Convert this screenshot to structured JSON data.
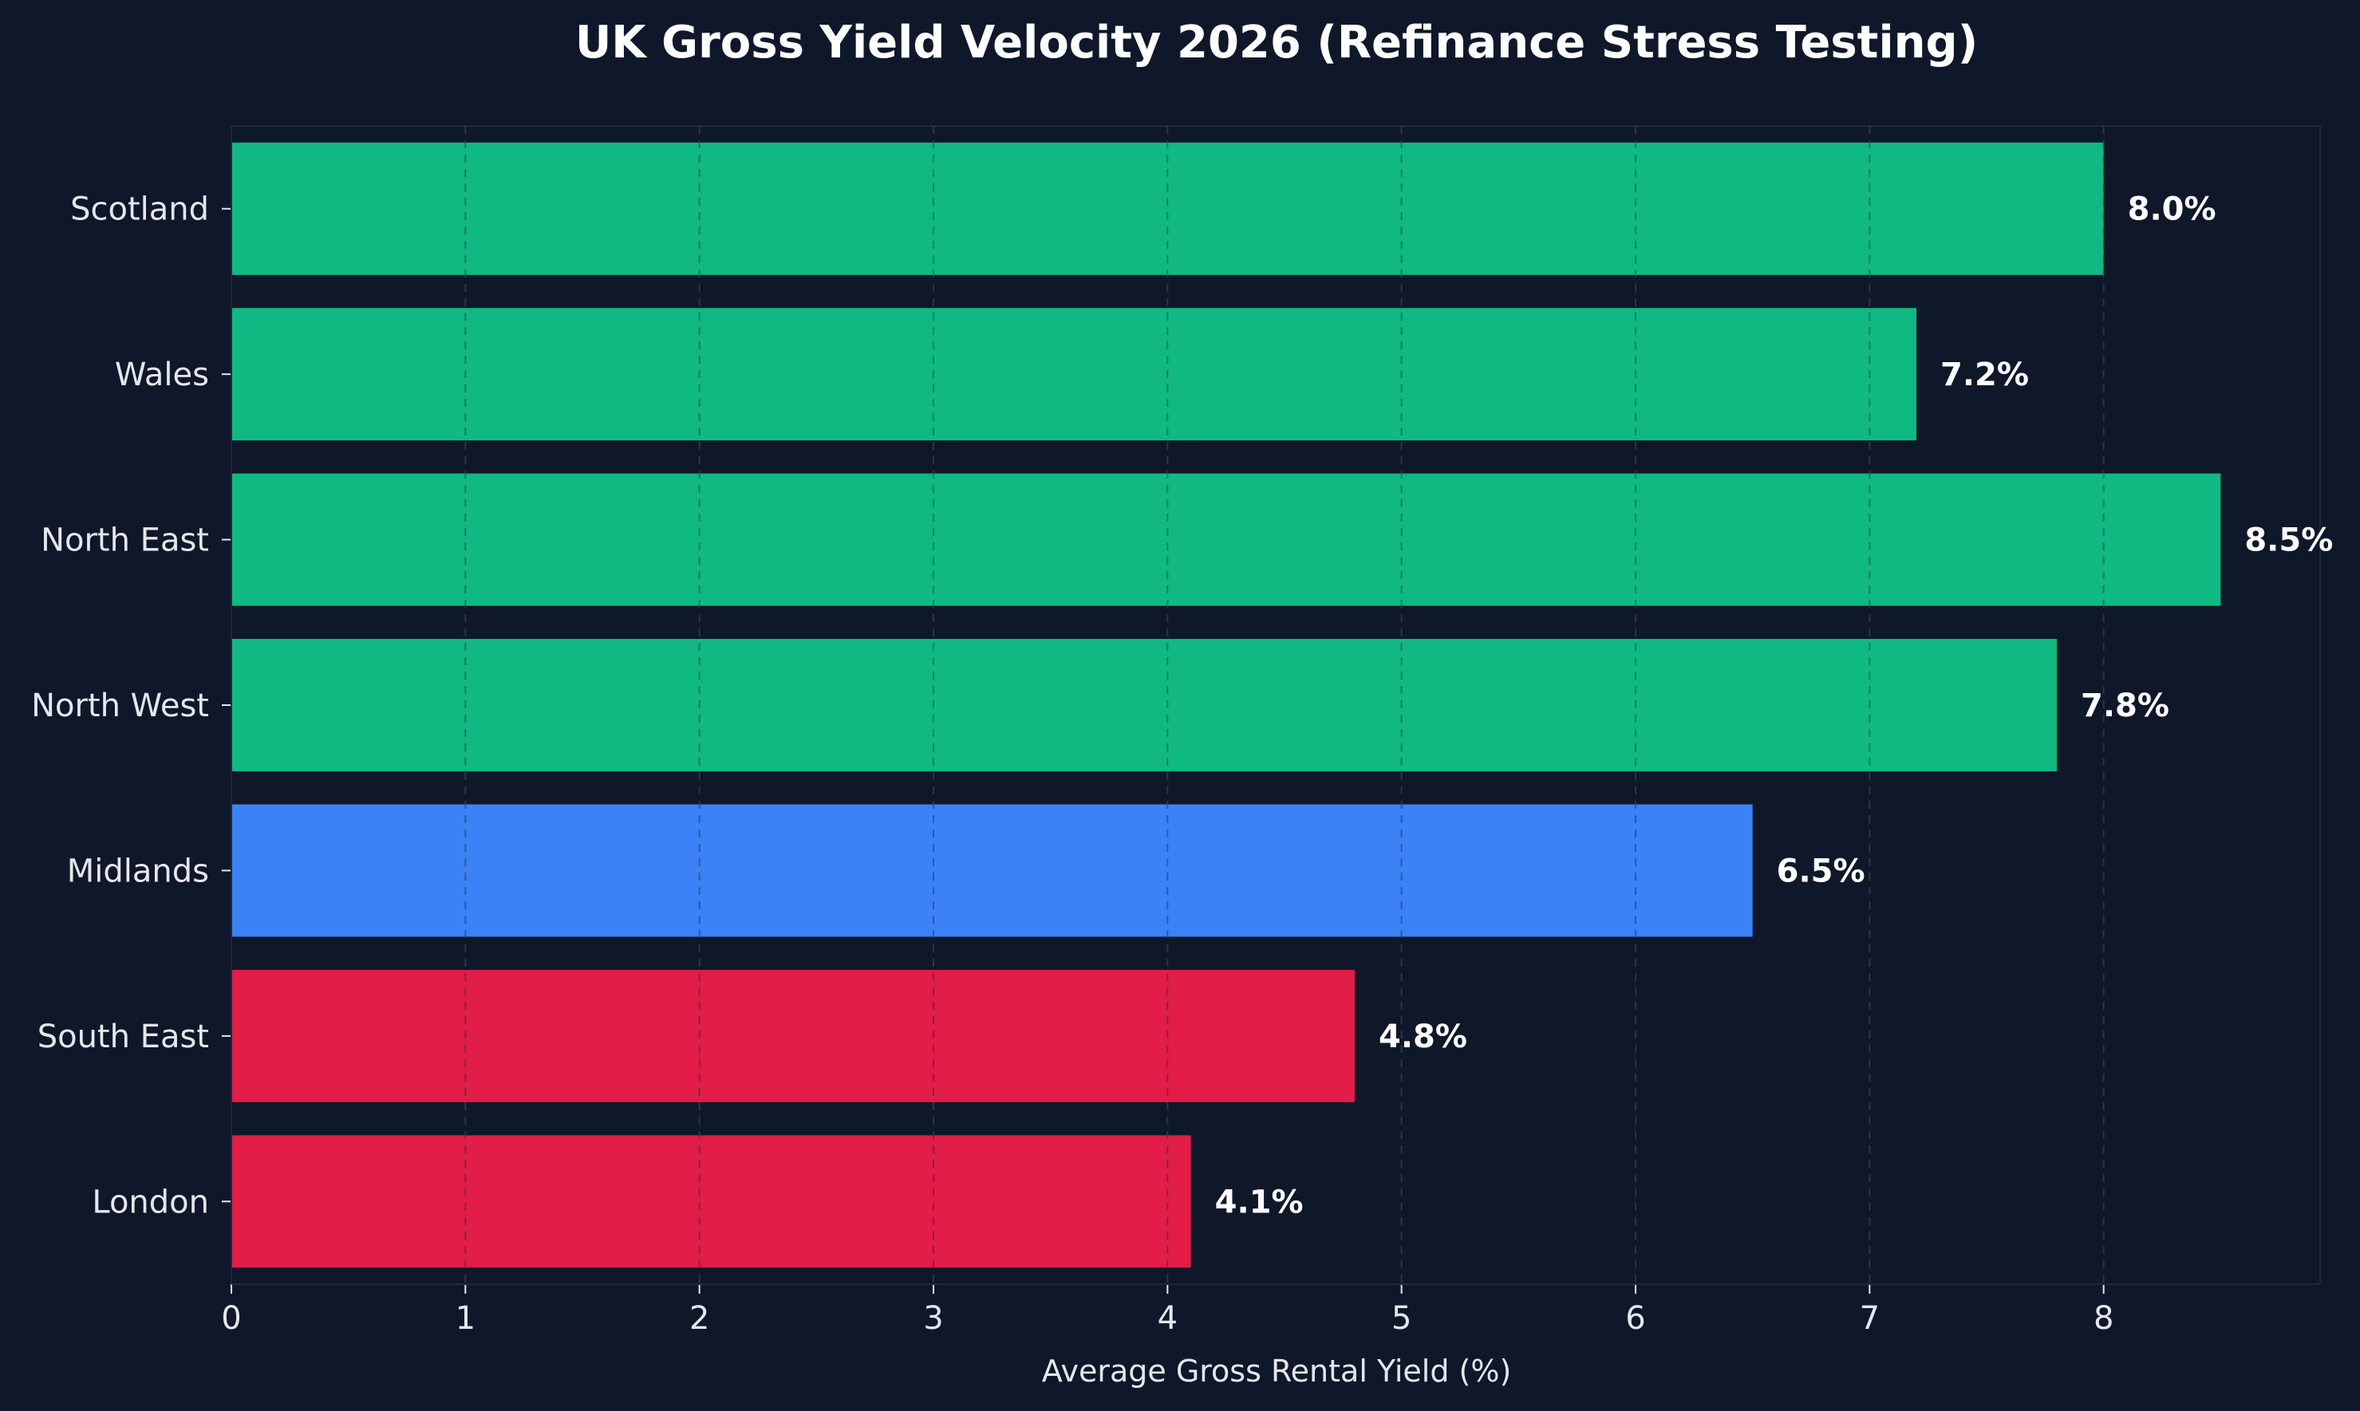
{
  "chart_data": {
    "type": "bar",
    "orientation": "horizontal",
    "title": "UK Gross Yield Velocity 2026 (Refinance Stress Testing)",
    "xlabel": "Average Gross Rental Yield (%)",
    "ylabel": "",
    "xlim": [
      0,
      8.925
    ],
    "xticks": [
      0,
      1,
      2,
      3,
      4,
      5,
      6,
      7,
      8
    ],
    "grid": "vertical dashed",
    "categories": [
      "Scotland",
      "Wales",
      "North East",
      "North West",
      "Midlands",
      "South East",
      "London"
    ],
    "values": [
      8.0,
      7.2,
      8.5,
      7.8,
      6.5,
      4.8,
      4.1
    ],
    "data_labels": [
      "8.0%",
      "7.2%",
      "8.5%",
      "7.8%",
      "6.5%",
      "4.8%",
      "4.1%"
    ],
    "bar_colors": [
      "#10b981",
      "#10b981",
      "#10b981",
      "#10b981",
      "#3b82f6",
      "#e11d48",
      "#e11d48"
    ]
  },
  "colors": {
    "background": "#0f172a",
    "grid": "#334155",
    "text": "#e5e7eb"
  }
}
